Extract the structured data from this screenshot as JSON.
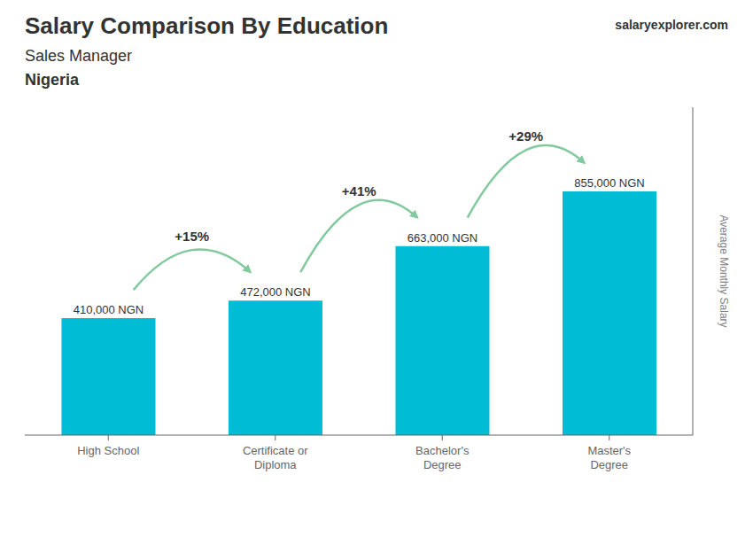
{
  "chart_data": {
    "type": "bar",
    "title": "Salary Comparison By Education",
    "subtitle": "Sales Manager",
    "annotations": [
      "Nigeria",
      "salaryexplorer.com"
    ],
    "y_label": "Average Monthly Salary",
    "categories": [
      "High School",
      "Certificate or\nDiploma",
      "Bachelor's\nDegree",
      "Master's\nDegree"
    ],
    "values": [
      410000,
      472000,
      663000,
      855000
    ],
    "value_labels": [
      "410,000 NGN",
      "472,000 NGN",
      "663,000 NGN",
      "855,000 NGN"
    ],
    "change_labels": [
      "+15%",
      "+41%",
      "+29%"
    ],
    "color": "#00bcd4",
    "ylim": [
      0,
      1150000
    ],
    "yticks": [],
    "grid": false,
    "data_labels": true,
    "tick_labels": "x"
  }
}
